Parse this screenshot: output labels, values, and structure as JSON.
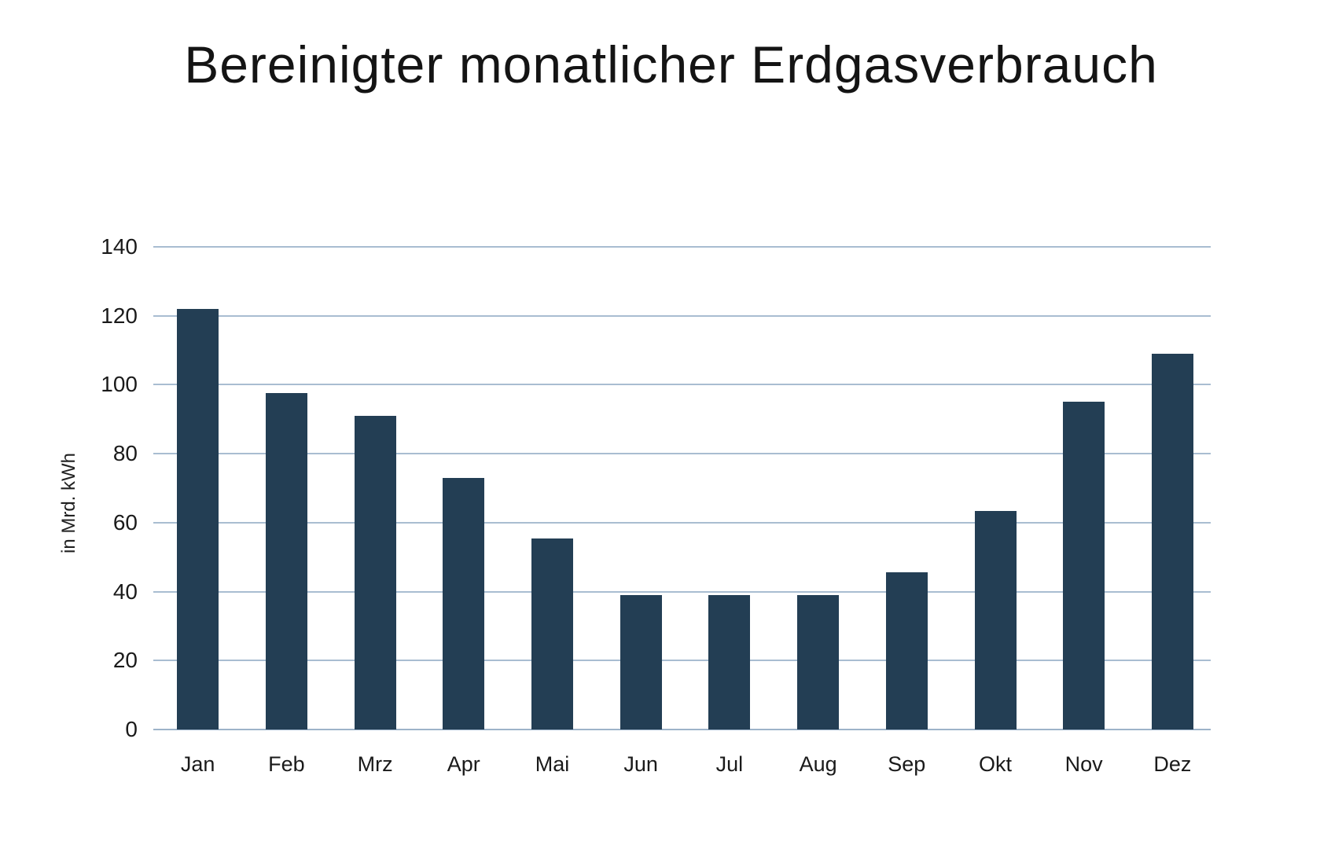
{
  "page": {
    "background_color": "#ffffff"
  },
  "chart_data": {
    "type": "bar",
    "title": "Bereinigter monatlicher Erdgasverbrauch",
    "ylabel": "in Mrd. kWh",
    "xlabel": "",
    "categories": [
      "Jan",
      "Feb",
      "Mrz",
      "Apr",
      "Mai",
      "Jun",
      "Jul",
      "Aug",
      "Sep",
      "Okt",
      "Nov",
      "Dez"
    ],
    "values": [
      122,
      97.5,
      91,
      73,
      55.5,
      39,
      39,
      39,
      45.5,
      63.5,
      95,
      109
    ],
    "ylim": [
      0,
      140
    ],
    "yticks": [
      0,
      20,
      40,
      60,
      80,
      100,
      120,
      140
    ],
    "grid": true,
    "legend": "none",
    "bar_color": "#233E54",
    "gridline_color": "#A9BDD1",
    "baseline_color": "#9DB3C9",
    "text_color": "#1A1A1A"
  }
}
